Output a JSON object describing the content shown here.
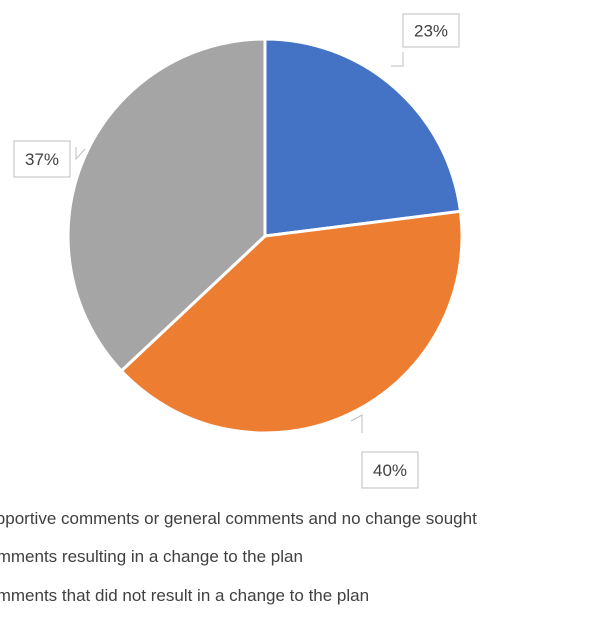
{
  "chart_data": {
    "type": "pie",
    "title": "",
    "slices": [
      {
        "label": "Supportive comments or general comments and no change sought",
        "value": 23,
        "display": "23%",
        "color": "#4472C4"
      },
      {
        "label": "Comments resulting in a change to the plan",
        "value": 40,
        "display": "40%",
        "color": "#ED7D31"
      },
      {
        "label": "Comments that did not result in a change to the plan",
        "value": 37,
        "display": "37%",
        "color": "#A5A5A5"
      }
    ],
    "legend_position": "bottom-left",
    "data_labels": "callout"
  },
  "legend": {
    "items": [
      {
        "text": "Supportive comments or general comments and no change sought",
        "color": "#4472C4"
      },
      {
        "text": "Comments resulting in a change to the plan",
        "color": "#ED7D31"
      },
      {
        "text": "Comments that did not result in a change to the plan",
        "color": "#A5A5A5"
      }
    ]
  }
}
